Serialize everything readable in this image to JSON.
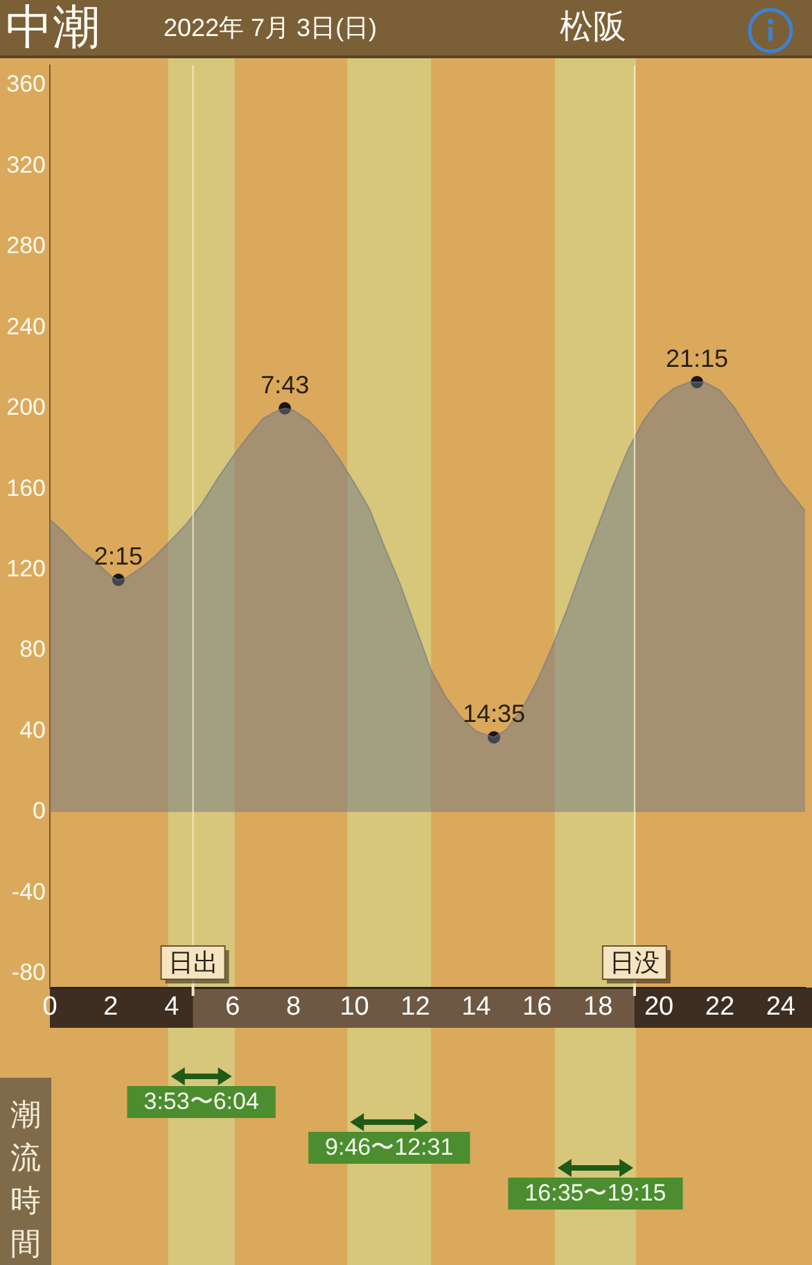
{
  "chart_data": {
    "type": "area",
    "title": "中潮",
    "subtitle": "2022年 7月 3日(日)",
    "annotations": [
      "松阪",
      "潮流時間",
      {
        "text": "2:15",
        "x": 2.25,
        "y": 115
      },
      {
        "text": "7:43",
        "x": 7.717,
        "y": 200
      },
      {
        "text": "14:35",
        "x": 14.583,
        "y": 37
      },
      {
        "text": "21:15",
        "x": 21.25,
        "y": 213
      }
    ],
    "xlim": [
      0,
      24.8
    ],
    "xticks": [
      0,
      2,
      4,
      6,
      8,
      10,
      12,
      14,
      16,
      18,
      20,
      22,
      24
    ],
    "ylim": [
      -87,
      370
    ],
    "yticks": [
      -80,
      -40,
      0,
      40,
      80,
      120,
      160,
      200,
      240,
      280,
      320,
      360
    ],
    "grid": false,
    "legend": false,
    "series": [
      {
        "type": "area",
        "color": "#707888",
        "marker": "none",
        "x": [
          0,
          0.5,
          1,
          1.5,
          2,
          2.25,
          2.5,
          3,
          3.4,
          4,
          4.5,
          5,
          5.5,
          6,
          6.5,
          7,
          7.5,
          7.717,
          8,
          8.5,
          9,
          9.5,
          10,
          10.5,
          11,
          11.5,
          12,
          12.5,
          13,
          13.5,
          14,
          14.583,
          15,
          15.5,
          16,
          16.5,
          17,
          17.5,
          18,
          18.5,
          19,
          19.5,
          20,
          20.5,
          21,
          21.25,
          21.5,
          22,
          22.5,
          23,
          23.5,
          24,
          24.5,
          24.8
        ],
        "values": [
          145,
          138,
          130,
          124,
          117,
          115,
          116,
          121,
          126,
          135,
          143,
          153,
          165,
          176,
          186,
          195,
          199,
          200,
          199,
          194,
          186,
          175,
          163,
          150,
          131,
          113,
          92,
          71,
          57,
          47,
          40,
          37,
          41,
          51,
          65,
          82,
          101,
          122,
          142,
          162,
          180,
          194,
          204,
          210,
          213,
          213,
          213,
          209,
          200,
          188,
          176,
          164,
          155,
          149
        ]
      },
      {
        "type": "scatter",
        "color": "#1a1410",
        "marker": "circle",
        "x": [
          2.25,
          7.717,
          14.583,
          21.25
        ],
        "values": [
          115,
          200,
          37,
          213
        ]
      }
    ],
    "ref_lines": [
      {
        "axis": "x",
        "value": 4.7,
        "label": "日出"
      },
      {
        "axis": "x",
        "value": 19.2,
        "label": "日没"
      }
    ],
    "bands": [
      {
        "axis": "x",
        "from": 3.883,
        "to": 6.067,
        "label": "3:53〜6:04",
        "color": "#d7c77a"
      },
      {
        "axis": "x",
        "from": 9.767,
        "to": 12.517,
        "label": "9:46〜12:31",
        "color": "#d7c77a"
      },
      {
        "axis": "x",
        "from": 16.583,
        "to": 19.25,
        "label": "16:35〜19:15",
        "color": "#d7c77a"
      }
    ]
  }
}
